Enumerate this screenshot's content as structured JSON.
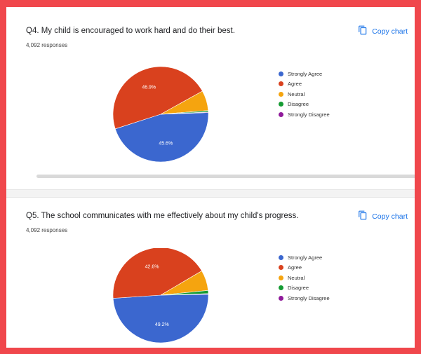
{
  "colors": {
    "strongly_agree": "#3b67cf",
    "agree": "#d9411e",
    "neutral": "#f5a40f",
    "disagree": "#159b33",
    "strongly_disagree": "#8f1a9a",
    "link": "#1a73e8"
  },
  "copy_chart_label": "Copy chart",
  "copy_icon": "copy-icon",
  "cards": [
    {
      "title": "Q4. My child is encouraged to work hard and do their best.",
      "responses": "4,092 responses"
    },
    {
      "title": "Q5. The school communicates with me effectively about my child's progress.",
      "responses": "4,092 responses"
    }
  ],
  "chart_data": [
    {
      "type": "pie",
      "title": "Q4. My child is encouraged to work hard and do their best.",
      "labels": [
        "Strongly Agree",
        "Agree",
        "Neutral",
        "Disagree",
        "Strongly Disagree"
      ],
      "values": [
        45.6,
        46.9,
        6.8,
        0.5,
        0.2
      ],
      "data_labels": [
        "45.6%",
        "46.9%",
        "",
        "",
        ""
      ],
      "legend_position": "right"
    },
    {
      "type": "pie",
      "title": "Q5. The school communicates with me effectively about my child's progress.",
      "labels": [
        "Strongly Agree",
        "Agree",
        "Neutral",
        "Disagree",
        "Strongly Disagree"
      ],
      "values": [
        49.2,
        42.6,
        6.9,
        1.1,
        0.2
      ],
      "data_labels": [
        "49.2%",
        "42.6%",
        "",
        "",
        ""
      ],
      "legend_position": "right"
    }
  ]
}
